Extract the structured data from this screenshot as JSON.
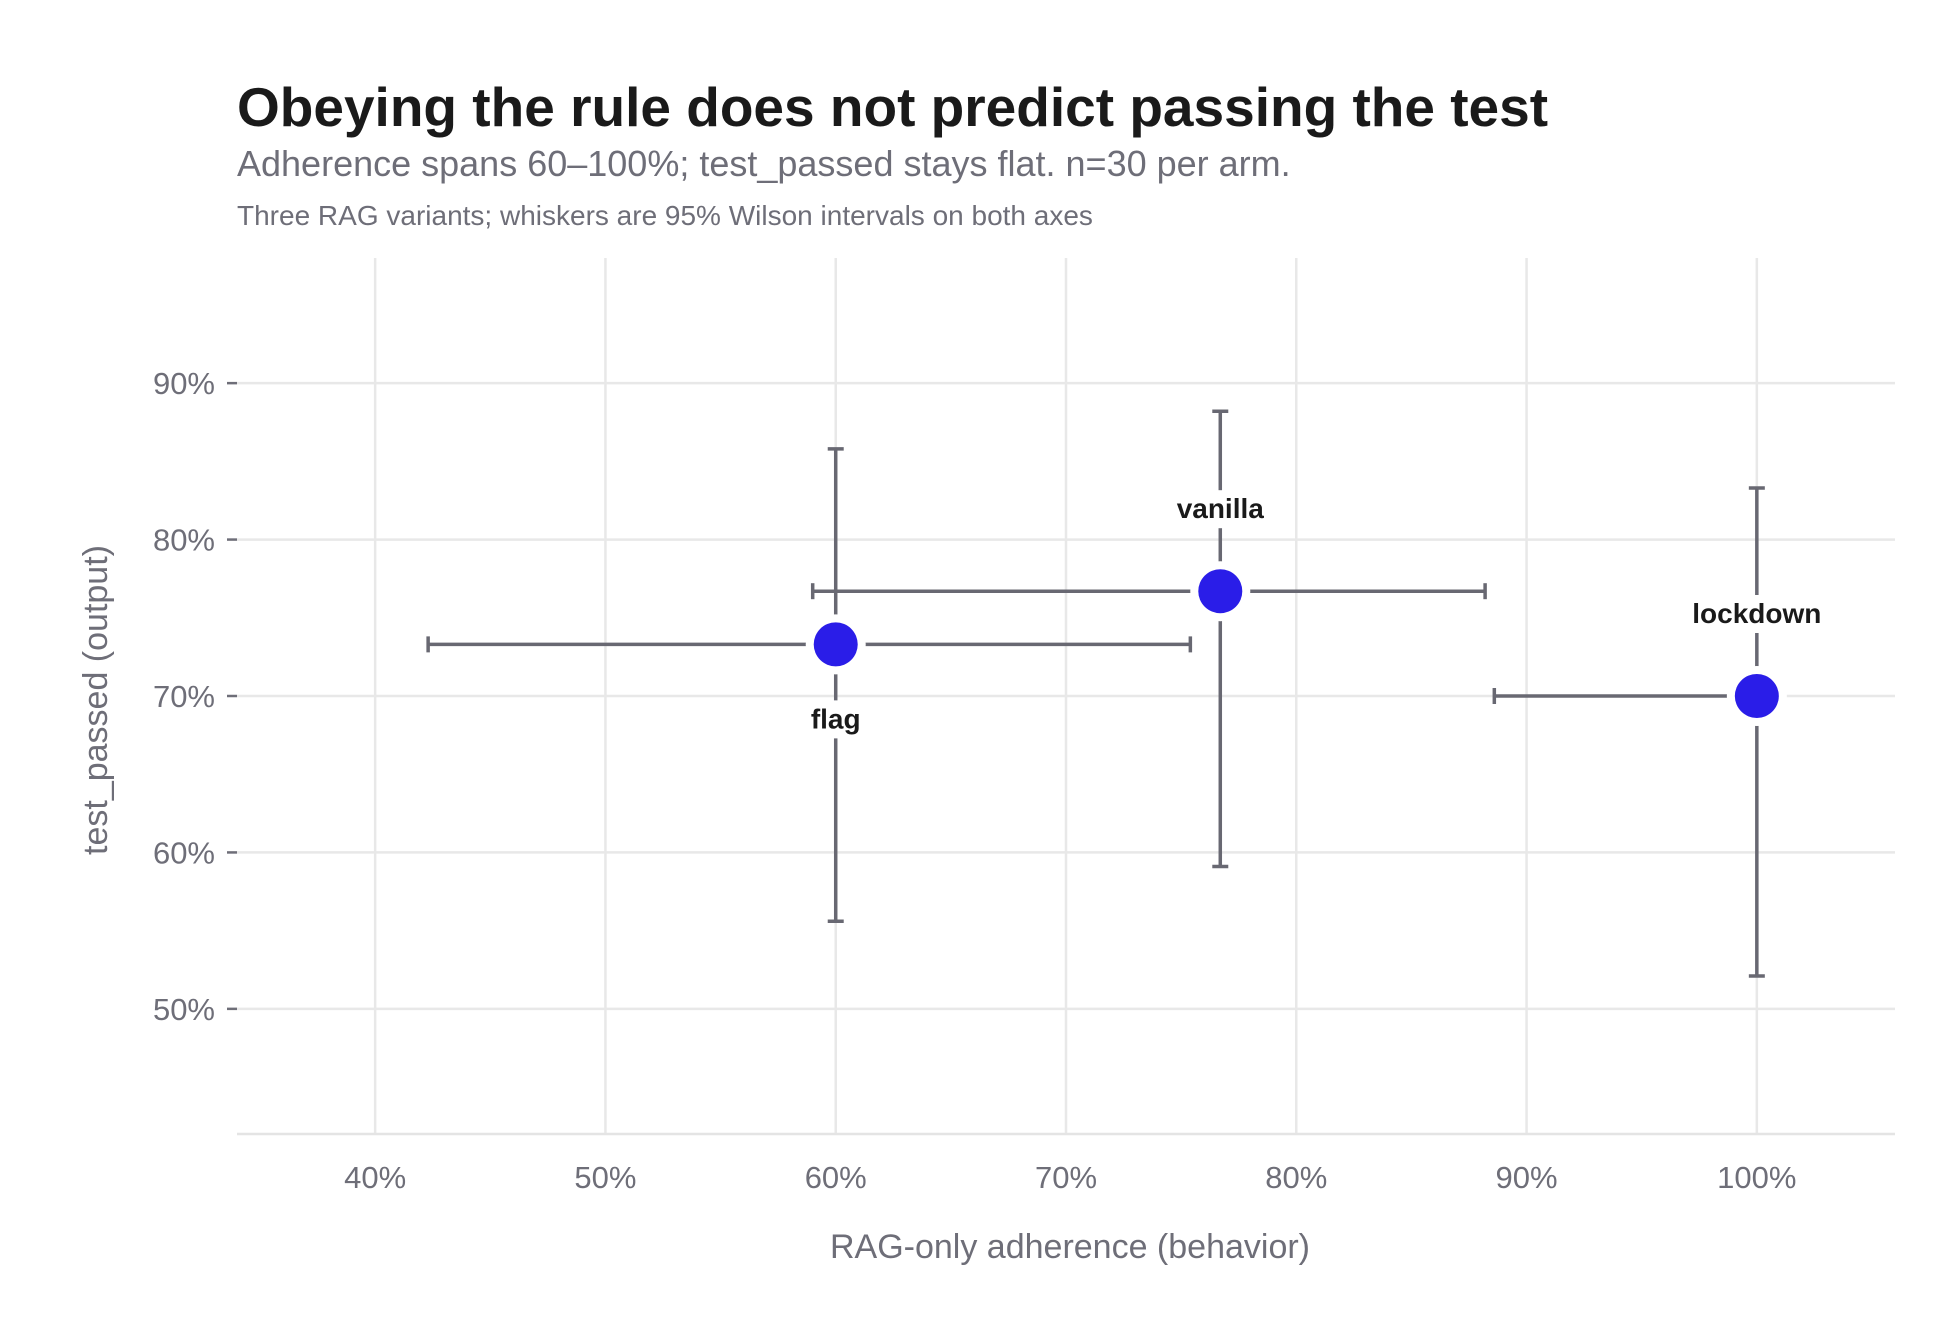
{
  "chart_data": {
    "type": "scatter",
    "title": "Obeying the rule does not predict passing the test",
    "subtitle": "Adherence spans 60–100%; test_passed stays flat. n=30 per arm.",
    "caption": "Three RAG variants; whiskers are 95% Wilson intervals on both axes",
    "xlabel": "RAG-only adherence (behavior)",
    "ylabel": "test_passed (output)",
    "xlim": [
      0.34,
      1.06
    ],
    "ylim": [
      0.42,
      0.98
    ],
    "x_ticks": [
      0.4,
      0.5,
      0.6,
      0.7,
      0.8,
      0.9,
      1.0
    ],
    "x_tick_labels": [
      "40%",
      "50%",
      "60%",
      "70%",
      "80%",
      "90%",
      "100%"
    ],
    "y_ticks": [
      0.5,
      0.6,
      0.7,
      0.8,
      0.9
    ],
    "y_tick_labels": [
      "50%",
      "60%",
      "70%",
      "80%",
      "90%"
    ],
    "grid": true,
    "point_color": "#2a1de8",
    "points": [
      {
        "label": "flag",
        "label_position": "below",
        "x": 0.6,
        "y": 0.733,
        "x_ci": [
          0.423,
          0.754
        ],
        "y_ci": [
          0.556,
          0.858
        ]
      },
      {
        "label": "vanilla",
        "label_position": "above",
        "x": 0.767,
        "y": 0.767,
        "x_ci": [
          0.59,
          0.882
        ],
        "y_ci": [
          0.591,
          0.882
        ]
      },
      {
        "label": "lockdown",
        "label_position": "above",
        "x": 1.0,
        "y": 0.7,
        "x_ci": [
          0.886,
          1.0
        ],
        "y_ci": [
          0.521,
          0.833
        ]
      }
    ]
  }
}
